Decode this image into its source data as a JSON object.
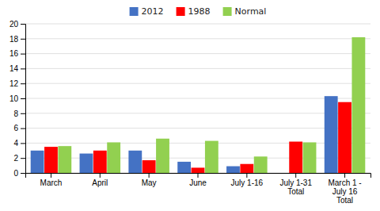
{
  "chart_data": {
    "type": "bar",
    "categories": [
      "March",
      "April",
      "May",
      "June",
      "July 1-16",
      "July 1-31\nTotal",
      "March 1 -\nJuly 16\nTotal"
    ],
    "series": [
      {
        "name": "2012",
        "color": "#4472C4",
        "values": [
          3.0,
          2.6,
          3.0,
          1.5,
          0.9,
          0.0,
          10.3
        ]
      },
      {
        "name": "1988",
        "color": "#FF0000",
        "values": [
          3.5,
          3.0,
          1.7,
          0.7,
          1.2,
          4.2,
          9.5
        ]
      },
      {
        "name": "Normal",
        "color": "#92D050",
        "values": [
          3.6,
          4.1,
          4.6,
          4.3,
          2.2,
          4.1,
          18.2
        ]
      }
    ],
    "ylim": [
      0,
      20
    ],
    "yticks": [
      0,
      2,
      4,
      6,
      8,
      10,
      12,
      14,
      16,
      18,
      20
    ],
    "grid": true,
    "legend": "top"
  }
}
